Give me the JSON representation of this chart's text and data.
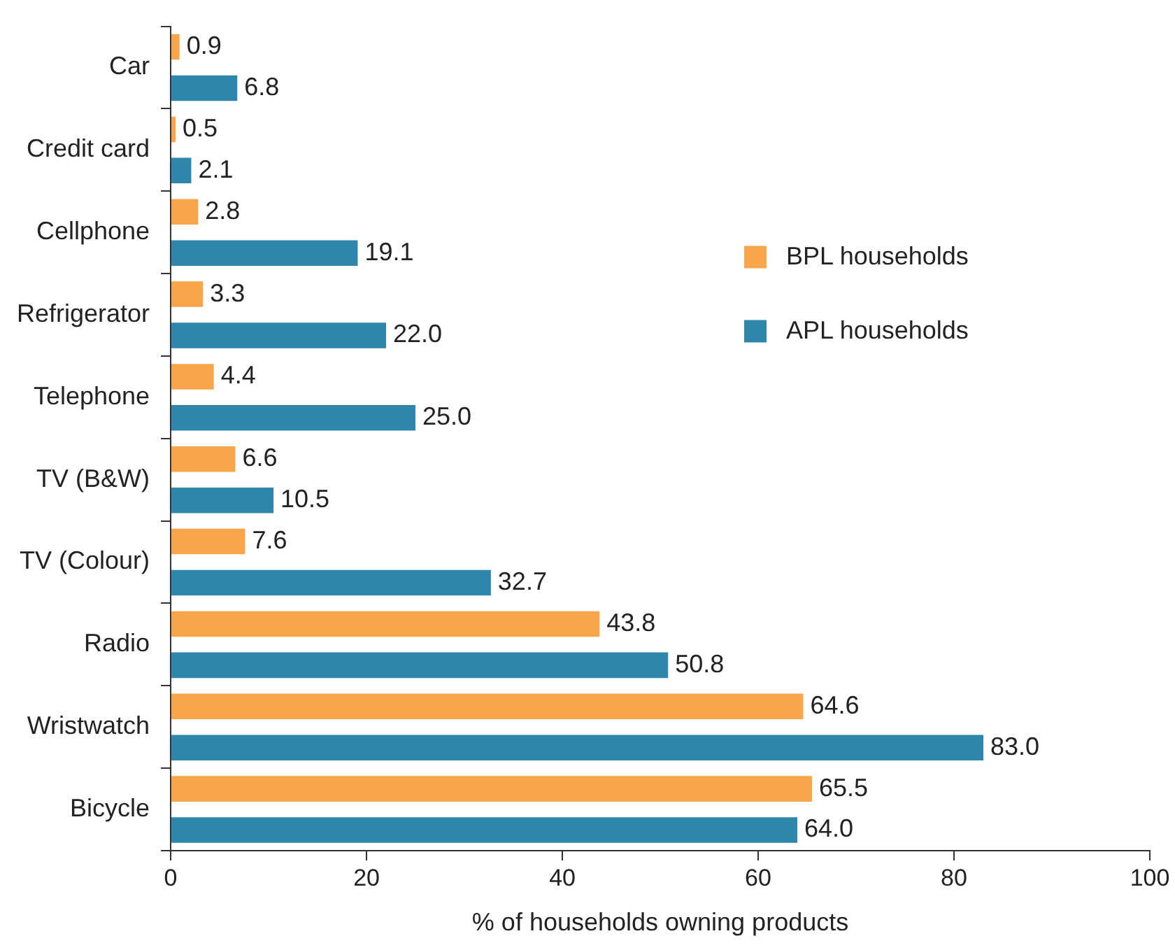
{
  "chart_data": {
    "type": "bar",
    "orientation": "horizontal",
    "xlabel": "% of households owning products",
    "categories": [
      "Car",
      "Credit card",
      "Cellphone",
      "Refrigerator",
      "Telephone",
      "TV (B&W)",
      "TV (Colour)",
      "Radio",
      "Wristwatch",
      "Bicycle"
    ],
    "series": [
      {
        "name": "BPL households",
        "color": "#f9a54a",
        "values": [
          0.9,
          0.5,
          2.8,
          3.3,
          4.4,
          6.6,
          7.6,
          43.8,
          64.6,
          65.5
        ],
        "value_labels": [
          "0.9",
          "0.5",
          "2.8",
          "3.3",
          "4.4",
          "6.6",
          "7.6",
          "43.8",
          "64.6",
          "65.5"
        ]
      },
      {
        "name": "APL households",
        "color": "#2e86ab",
        "values": [
          6.8,
          2.1,
          19.1,
          22.0,
          25.0,
          10.5,
          32.7,
          50.8,
          83.0,
          64.0
        ],
        "value_labels": [
          "6.8",
          "2.1",
          "19.1",
          "22.0",
          "25.0",
          "10.5",
          "32.7",
          "50.8",
          "83.0",
          "64.0"
        ]
      }
    ],
    "xlim": [
      0,
      100
    ],
    "xticks": [
      0,
      20,
      40,
      60,
      80,
      100
    ],
    "grid": false,
    "legend": "right"
  }
}
